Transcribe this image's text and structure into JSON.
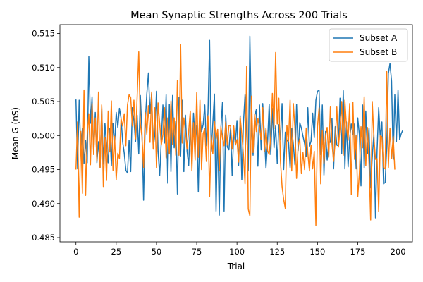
{
  "chart_data": {
    "type": "line",
    "title": "Mean Synaptic Strengths Across 200 Trials",
    "xlabel": "Trial",
    "ylabel": "Mean G (nS)",
    "xlim": [
      -9.95,
      208.95
    ],
    "ylim": [
      0.48438,
      0.5163
    ],
    "xticks": [
      0,
      25,
      50,
      75,
      100,
      125,
      150,
      175,
      200
    ],
    "xtick_labels": [
      "0",
      "25",
      "50",
      "75",
      "100",
      "125",
      "150",
      "175",
      "200"
    ],
    "yticks": [
      0.485,
      0.49,
      0.495,
      0.5,
      0.505,
      0.51,
      0.515
    ],
    "ytick_labels": [
      "0.485",
      "0.490",
      "0.495",
      "0.500",
      "0.505",
      "0.510",
      "0.515"
    ],
    "grid": false,
    "legend_position": "upper right",
    "series": [
      {
        "name": "Subset A",
        "color": "#1f77b4",
        "x_start": 0,
        "x_step": 1,
        "values": [
          0.5053,
          0.4951,
          0.5052,
          0.4978,
          0.501,
          0.4959,
          0.4993,
          0.496,
          0.5116,
          0.5018,
          0.5057,
          0.4975,
          0.5034,
          0.496,
          0.4991,
          0.4953,
          0.5042,
          0.4958,
          0.5018,
          0.4983,
          0.496,
          0.501,
          0.4956,
          0.5018,
          0.4987,
          0.5034,
          0.5012,
          0.504,
          0.5026,
          0.4991,
          0.4974,
          0.4949,
          0.4945,
          0.4993,
          0.4947,
          0.5041,
          0.5022,
          0.4991,
          0.503,
          0.4973,
          0.5059,
          0.5004,
          0.4905,
          0.5018,
          0.5061,
          0.5092,
          0.5033,
          0.5062,
          0.4982,
          0.5002,
          0.5065,
          0.4977,
          0.4941,
          0.4992,
          0.5045,
          0.4989,
          0.506,
          0.493,
          0.5046,
          0.4947,
          0.5059,
          0.4982,
          0.5021,
          0.4914,
          0.5056,
          0.497,
          0.5052,
          0.4947,
          0.503,
          0.4977,
          0.4956,
          0.5017,
          0.4958,
          0.5033,
          0.4994,
          0.5014,
          0.4917,
          0.5029,
          0.5006,
          0.5016,
          0.5045,
          0.4985,
          0.5034,
          0.514,
          0.4977,
          0.5018,
          0.5061,
          0.4889,
          0.5009,
          0.4883,
          0.5011,
          0.5049,
          0.4889,
          0.503,
          0.4983,
          0.4979,
          0.5011,
          0.4941,
          0.5005,
          0.4989,
          0.5022,
          0.4956,
          0.5029,
          0.4935,
          0.5018,
          0.506,
          0.5009,
          0.4948,
          0.5146,
          0.5009,
          0.4971,
          0.5029,
          0.5038,
          0.4955,
          0.5045,
          0.4979,
          0.5047,
          0.5001,
          0.4952,
          0.4991,
          0.5046,
          0.4972,
          0.504,
          0.4982,
          0.5014,
          0.4959,
          0.5016,
          0.4994,
          0.5047,
          0.495,
          0.5005,
          0.4993,
          0.4991,
          0.4953,
          0.501,
          0.4987,
          0.4957,
          0.5046,
          0.4978,
          0.5019,
          0.5011,
          0.4999,
          0.4988,
          0.4969,
          0.5041,
          0.4984,
          0.4992,
          0.5033,
          0.4997,
          0.5052,
          0.5065,
          0.5067,
          0.4972,
          0.5045,
          0.4942,
          0.5006,
          0.4964,
          0.4991,
          0.499,
          0.5025,
          0.4951,
          0.5013,
          0.4986,
          0.4985,
          0.5055,
          0.4973,
          0.5066,
          0.4951,
          0.502,
          0.4954,
          0.4996,
          0.5017,
          0.5002,
          0.5017,
          0.4951,
          0.5026,
          0.5001,
          0.4926,
          0.5045,
          0.4952,
          0.5036,
          0.4973,
          0.5011,
          0.4923,
          0.4968,
          0.5003,
          0.4879,
          0.4978,
          0.5041,
          0.4997,
          0.502,
          0.4929,
          0.4931,
          0.4983,
          0.5091,
          0.5106,
          0.508,
          0.4965,
          0.506,
          0.4991,
          0.5067,
          0.4994,
          0.5003,
          0.5008
        ]
      },
      {
        "name": "Subset B",
        "color": "#ff7f0e",
        "x_start": 0,
        "x_step": 1,
        "values": [
          0.495,
          0.502,
          0.488,
          0.5006,
          0.4915,
          0.5067,
          0.4912,
          0.5001,
          0.5032,
          0.4957,
          0.5047,
          0.4972,
          0.5026,
          0.4962,
          0.5064,
          0.4953,
          0.5045,
          0.4925,
          0.4997,
          0.4934,
          0.5036,
          0.4976,
          0.5051,
          0.4949,
          0.4999,
          0.4935,
          0.4974,
          0.4966,
          0.5025,
          0.5014,
          0.5032,
          0.4985,
          0.5045,
          0.506,
          0.5056,
          0.5014,
          0.5052,
          0.4995,
          0.5056,
          0.5123,
          0.5017,
          0.4998,
          0.4953,
          0.5034,
          0.5002,
          0.5044,
          0.499,
          0.5064,
          0.498,
          0.5041,
          0.4953,
          0.5048,
          0.5018,
          0.4986,
          0.5001,
          0.5041,
          0.4967,
          0.5026,
          0.4973,
          0.5051,
          0.4987,
          0.5026,
          0.4971,
          0.5081,
          0.4971,
          0.5134,
          0.4989,
          0.5026,
          0.5006,
          0.498,
          0.5006,
          0.5036,
          0.4948,
          0.5019,
          0.4964,
          0.5063,
          0.4968,
          0.5052,
          0.495,
          0.5003,
          0.501,
          0.4962,
          0.5029,
          0.491,
          0.5,
          0.4973,
          0.5021,
          0.4995,
          0.5009,
          0.4949,
          0.5013,
          0.4996,
          0.4985,
          0.502,
          0.4986,
          0.5015,
          0.5014,
          0.498,
          0.5014,
          0.4986,
          0.4994,
          0.4961,
          0.5027,
          0.5002,
          0.4972,
          0.4929,
          0.5102,
          0.4892,
          0.4882,
          0.5058,
          0.4975,
          0.5032,
          0.5006,
          0.5025,
          0.5012,
          0.4994,
          0.5041,
          0.4977,
          0.5011,
          0.4978,
          0.4972,
          0.4999,
          0.5062,
          0.501,
          0.5122,
          0.5017,
          0.5055,
          0.4962,
          0.4925,
          0.4906,
          0.4893,
          0.5015,
          0.4992,
          0.5052,
          0.4948,
          0.5047,
          0.501,
          0.4937,
          0.4986,
          0.4995,
          0.4944,
          0.4975,
          0.495,
          0.5011,
          0.4974,
          0.4948,
          0.4986,
          0.4951,
          0.4977,
          0.4868,
          0.5013,
          0.5041,
          0.4929,
          0.5007,
          0.4959,
          0.5,
          0.5012,
          0.4968,
          0.5042,
          0.4988,
          0.4962,
          0.4992,
          0.5042,
          0.4983,
          0.5011,
          0.505,
          0.4971,
          0.5052,
          0.5013,
          0.4993,
          0.5047,
          0.4913,
          0.5049,
          0.4965,
          0.5,
          0.491,
          0.4944,
          0.5013,
          0.4982,
          0.5057,
          0.4956,
          0.5012,
          0.4959,
          0.4876,
          0.505,
          0.4998,
          0.4965,
          0.4966,
          0.4888,
          0.5,
          0.4998,
          0.4953,
          0.4951,
          0.5094,
          0.4953,
          0.5011,
          0.4966,
          0.4999,
          0.495
        ]
      }
    ]
  }
}
